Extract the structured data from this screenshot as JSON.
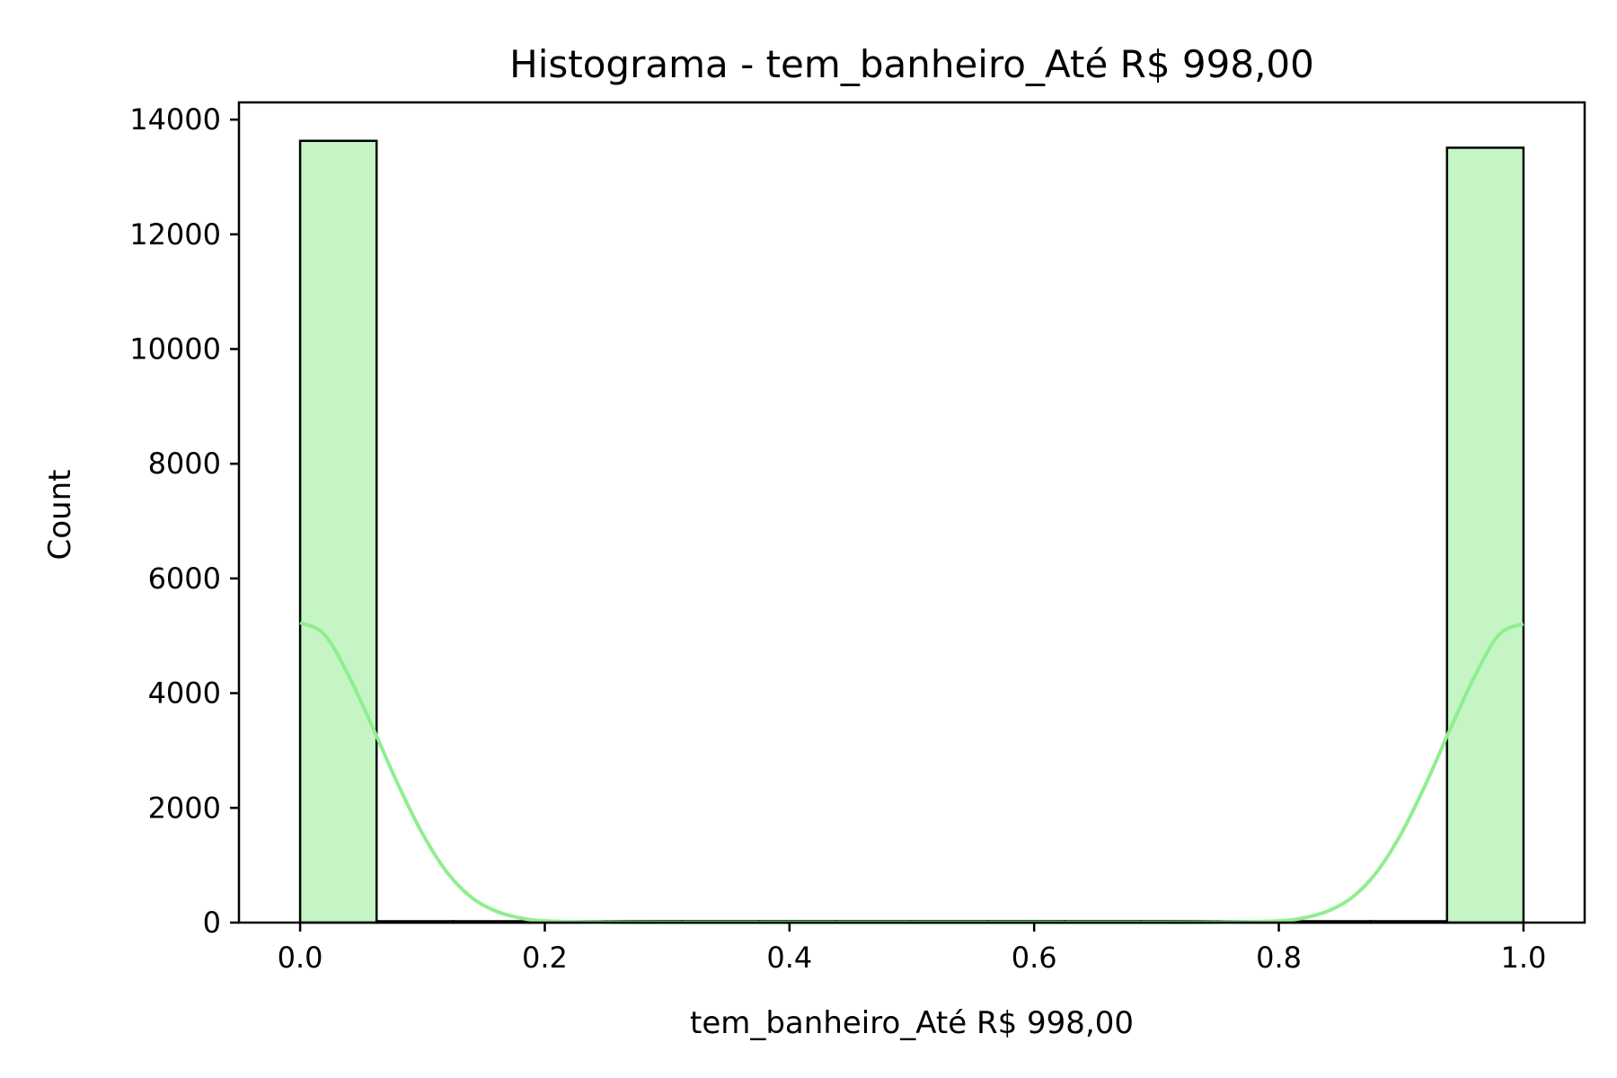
{
  "chart_data": {
    "type": "bar",
    "title": "Histograma - tem_banheiro_Até R$ 998,00",
    "xlabel": "tem_banheiro_Até R$ 998,00",
    "ylabel": "Count",
    "xlim": [
      -0.05,
      1.05
    ],
    "ylim": [
      0,
      14300
    ],
    "xticks": [
      0.0,
      0.2,
      0.4,
      0.6,
      0.8,
      1.0
    ],
    "xtick_labels": [
      "0.0",
      "0.2",
      "0.4",
      "0.6",
      "0.8",
      "1.0"
    ],
    "yticks": [
      0,
      2000,
      4000,
      6000,
      8000,
      10000,
      12000,
      14000
    ],
    "ytick_labels": [
      "0",
      "2000",
      "4000",
      "6000",
      "8000",
      "10000",
      "12000",
      "14000"
    ],
    "grid": false,
    "bins": [
      {
        "x0": 0.0,
        "x1": 0.0625,
        "count": 13630
      },
      {
        "x0": 0.0625,
        "x1": 0.125,
        "count": 0
      },
      {
        "x0": 0.125,
        "x1": 0.1875,
        "count": 0
      },
      {
        "x0": 0.1875,
        "x1": 0.25,
        "count": 0
      },
      {
        "x0": 0.25,
        "x1": 0.3125,
        "count": 0
      },
      {
        "x0": 0.3125,
        "x1": 0.375,
        "count": 0
      },
      {
        "x0": 0.375,
        "x1": 0.4375,
        "count": 0
      },
      {
        "x0": 0.4375,
        "x1": 0.5,
        "count": 0
      },
      {
        "x0": 0.5,
        "x1": 0.5625,
        "count": 0
      },
      {
        "x0": 0.5625,
        "x1": 0.625,
        "count": 0
      },
      {
        "x0": 0.625,
        "x1": 0.6875,
        "count": 0
      },
      {
        "x0": 0.6875,
        "x1": 0.75,
        "count": 0
      },
      {
        "x0": 0.75,
        "x1": 0.8125,
        "count": 0
      },
      {
        "x0": 0.8125,
        "x1": 0.875,
        "count": 0
      },
      {
        "x0": 0.875,
        "x1": 0.9375,
        "count": 0
      },
      {
        "x0": 0.9375,
        "x1": 1.0,
        "count": 13510
      }
    ],
    "kde": {
      "x": [
        0.0,
        0.02,
        0.04,
        0.06,
        0.08,
        0.1,
        0.12,
        0.14,
        0.16,
        0.18,
        0.2,
        0.25,
        0.3,
        0.4,
        0.5,
        0.6,
        0.7,
        0.75,
        0.8,
        0.82,
        0.84,
        0.86,
        0.88,
        0.9,
        0.92,
        0.94,
        0.96,
        0.98,
        1.0
      ],
      "y": [
        5230,
        5020,
        4290,
        3370,
        2410,
        1550,
        880,
        440,
        200,
        80,
        30,
        5,
        0,
        0,
        0,
        0,
        0,
        5,
        30,
        80,
        200,
        440,
        880,
        1550,
        2410,
        3370,
        4290,
        5020,
        5210
      ]
    },
    "colors": {
      "bar_fill": "#c5f5c5",
      "bar_edge": "#000000",
      "kde_line": "#90ee90"
    }
  }
}
